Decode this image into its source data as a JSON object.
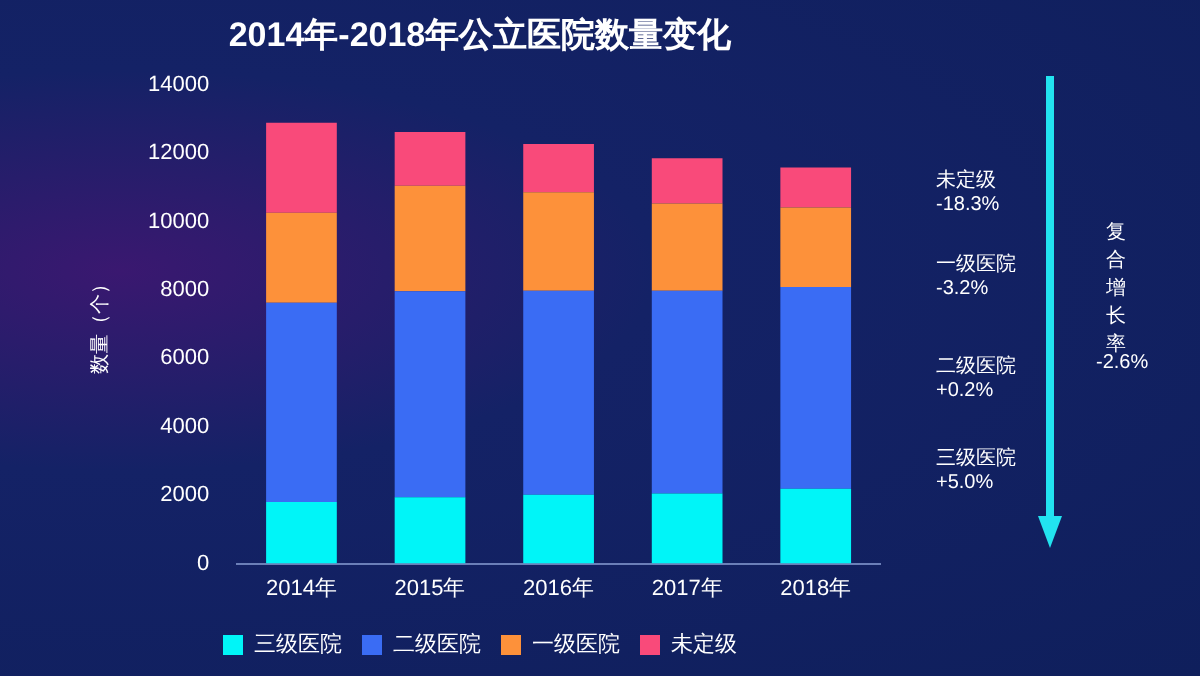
{
  "chart_data": {
    "type": "bar",
    "title": "2014年-2018年公立医院数量变化",
    "ylabel": "数量（个）",
    "categories": [
      "2014年",
      "2015年",
      "2016年",
      "2017年",
      "2018年"
    ],
    "stacked": true,
    "series": [
      {
        "name": "三级医院",
        "color": "#00f5f8",
        "values": [
          1800,
          1940,
          2010,
          2050,
          2190
        ]
      },
      {
        "name": "二级医院",
        "color": "#3a6cf4",
        "values": [
          5830,
          6020,
          5970,
          5930,
          5900
        ]
      },
      {
        "name": "一级医院",
        "color": "#fd913a",
        "values": [
          2630,
          3090,
          2880,
          2550,
          2320
        ]
      },
      {
        "name": "未定级",
        "color": "#f94a7a",
        "values": [
          2630,
          1570,
          1410,
          1320,
          1170
        ]
      }
    ],
    "ylim": [
      0,
      14000
    ],
    "yticks": [
      0,
      2000,
      4000,
      6000,
      8000,
      10000,
      12000,
      14000
    ],
    "grid": false,
    "legend": "bottom",
    "annotations": [
      "未定级\n-18.3%",
      "一级医院\n-3.2%",
      "二级医院\n+0.2%",
      "三级医院\n+5.0%",
      "复合增长率",
      "-2.6%"
    ]
  }
}
